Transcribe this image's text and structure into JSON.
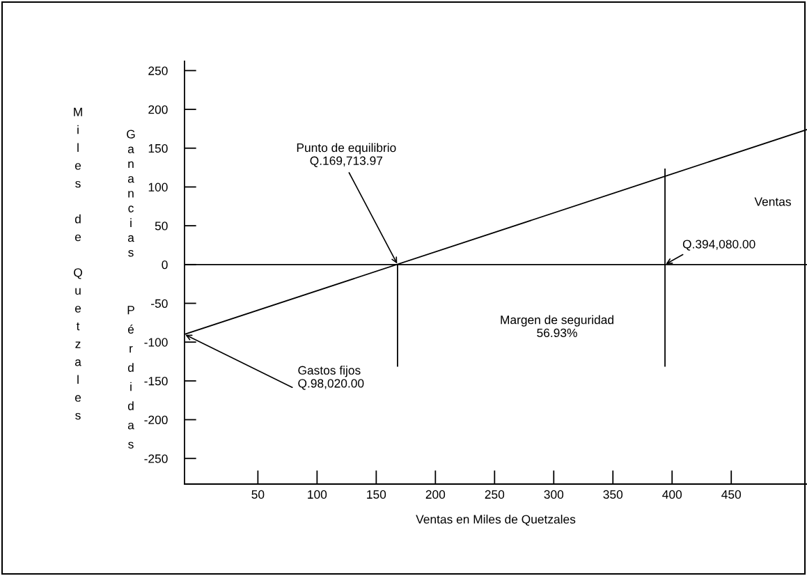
{
  "chart_data": {
    "type": "line",
    "xlabel": "Ventas en Miles de Quetzales",
    "ylabel": "Miles de Quetzales",
    "xlim": [
      -12,
      514
    ],
    "ylim": [
      -283,
      262
    ],
    "xticks": [
      50,
      100,
      150,
      200,
      250,
      300,
      350,
      400,
      450
    ],
    "yticks": [
      -250,
      -200,
      -150,
      -100,
      -50,
      0,
      50,
      100,
      150,
      200,
      250
    ],
    "grid": false,
    "legend": false,
    "series": [
      {
        "color": "#000000",
        "x": [
          -12,
          514
        ],
        "values": [
          -90,
          174
        ]
      },
      {
        "color": "#000000",
        "x": [
          168,
          168
        ],
        "values": [
          0,
          -131
        ]
      },
      {
        "color": "#000000",
        "x": [
          394,
          394
        ],
        "values": [
          123,
          -131
        ]
      }
    ],
    "ref_lines": [
      {
        "axis": "y",
        "value": 0,
        "color": "#000000"
      }
    ],
    "annotations": [
      "Ganancias",
      "Pérdidas",
      {
        "text": "Punto de equilibrio\nQ.169,713.97",
        "x": 168,
        "y": 0
      },
      {
        "text": "Q.394,080.00",
        "x": 394,
        "y": 0
      },
      {
        "text": "Gastos fijos\nQ.98,020.00",
        "x": -12,
        "y": -90
      },
      "Ventas",
      "Margen de seguridad\n56.93%"
    ]
  }
}
